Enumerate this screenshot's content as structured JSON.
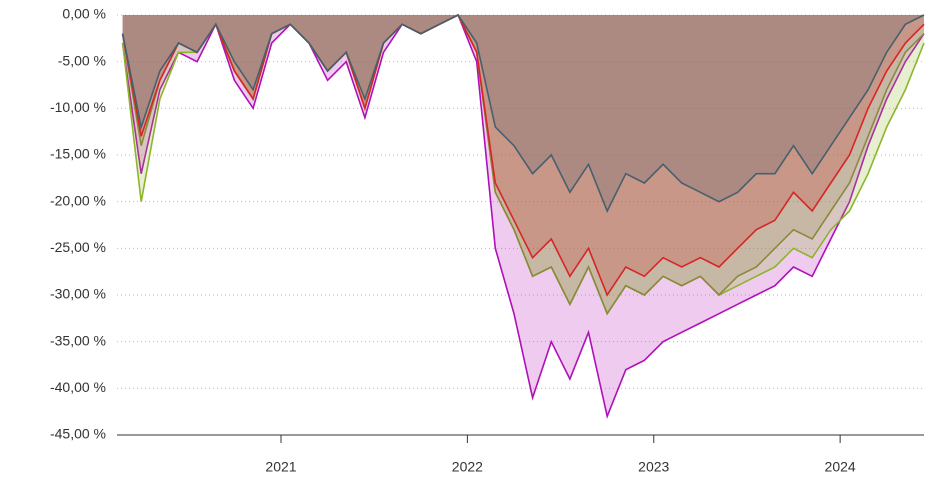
{
  "chart_data": {
    "type": "area",
    "x": [
      2020.15,
      2020.25,
      2020.35,
      2020.45,
      2020.55,
      2020.65,
      2020.75,
      2020.85,
      2020.95,
      2021.05,
      2021.15,
      2021.25,
      2021.35,
      2021.45,
      2021.55,
      2021.65,
      2021.75,
      2021.85,
      2021.95,
      2022.05,
      2022.15,
      2022.25,
      2022.35,
      2022.45,
      2022.55,
      2022.65,
      2022.75,
      2022.85,
      2022.95,
      2023.05,
      2023.15,
      2023.25,
      2023.35,
      2023.45,
      2023.55,
      2023.65,
      2023.75,
      2023.85,
      2023.95,
      2024.05,
      2024.15,
      2024.25,
      2024.35,
      2024.45
    ],
    "series": [
      {
        "color": "#b010b8",
        "values": [
          -3,
          -17,
          -8,
          -4,
          -5,
          -1,
          -7,
          -10,
          -3,
          -1,
          -3,
          -7,
          -5,
          -11,
          -4,
          -1,
          -2,
          -1,
          0,
          -5,
          -25,
          -32,
          -41,
          -35,
          -39,
          -34,
          -43,
          -38,
          -37,
          -35,
          -34,
          -33,
          -32,
          -31,
          -30,
          -29,
          -27,
          -28,
          -24,
          -20,
          -14,
          -9,
          -5,
          -2
        ]
      },
      {
        "color": "#8db52a",
        "values": [
          -3,
          -20,
          -9,
          -4,
          -4,
          -1,
          -6,
          -9,
          -2,
          -1,
          -3,
          -6,
          -4,
          -10,
          -3,
          -1,
          -2,
          -1,
          0,
          -4,
          -19,
          -23,
          -28,
          -27,
          -31,
          -27,
          -32,
          -29,
          -30,
          -28,
          -29,
          -28,
          -30,
          -29,
          -28,
          -27,
          -25,
          -26,
          -23,
          -21,
          -17,
          -12,
          -8,
          -3
        ]
      },
      {
        "color": "#8a8a3a",
        "values": [
          -2,
          -14,
          -7,
          -3,
          -4,
          -1,
          -6,
          -9,
          -2,
          -1,
          -3,
          -6,
          -4,
          -10,
          -3,
          -1,
          -2,
          -1,
          0,
          -4,
          -19,
          -23,
          -28,
          -27,
          -31,
          -27,
          -32,
          -29,
          -30,
          -28,
          -29,
          -28,
          -30,
          -28,
          -27,
          -25,
          -23,
          -24,
          -21,
          -18,
          -13,
          -8,
          -4,
          -2
        ]
      },
      {
        "color": "#d62626",
        "values": [
          -2,
          -13,
          -7,
          -3,
          -4,
          -1,
          -6,
          -9,
          -2,
          -1,
          -3,
          -6,
          -4,
          -10,
          -3,
          -1,
          -2,
          -1,
          0,
          -4,
          -18,
          -22,
          -26,
          -24,
          -28,
          -25,
          -30,
          -27,
          -28,
          -26,
          -27,
          -26,
          -27,
          -25,
          -23,
          -22,
          -19,
          -21,
          -18,
          -15,
          -10,
          -6,
          -3,
          -1
        ]
      },
      {
        "color": "#46606e",
        "values": [
          -2,
          -12,
          -6,
          -3,
          -4,
          -1,
          -5,
          -8,
          -2,
          -1,
          -3,
          -6,
          -4,
          -9,
          -3,
          -1,
          -2,
          -1,
          0,
          -3,
          -12,
          -14,
          -17,
          -15,
          -19,
          -16,
          -21,
          -17,
          -18,
          -16,
          -18,
          -19,
          -20,
          -19,
          -17,
          -17,
          -14,
          -17,
          -14,
          -11,
          -8,
          -4,
          -1,
          0
        ]
      }
    ],
    "xlim": [
      2020.12,
      2024.45
    ],
    "xticks": [
      2021,
      2022,
      2023,
      2024
    ],
    "ylim": [
      -45,
      0
    ],
    "yticks": [
      {
        "value": 0,
        "label": "0,00 %"
      },
      {
        "value": -5,
        "label": "-5,00 %"
      },
      {
        "value": -10,
        "label": "-10,00 %"
      },
      {
        "value": -15,
        "label": "-15,00 %"
      },
      {
        "value": -20,
        "label": "-20,00 %"
      },
      {
        "value": -25,
        "label": "-25,00 %"
      },
      {
        "value": -30,
        "label": "-30,00 %"
      },
      {
        "value": -35,
        "label": "-35,00 %"
      },
      {
        "value": -40,
        "label": "-40,00 %"
      },
      {
        "value": -45,
        "label": "-45,00 %"
      }
    ],
    "grid": true
  }
}
